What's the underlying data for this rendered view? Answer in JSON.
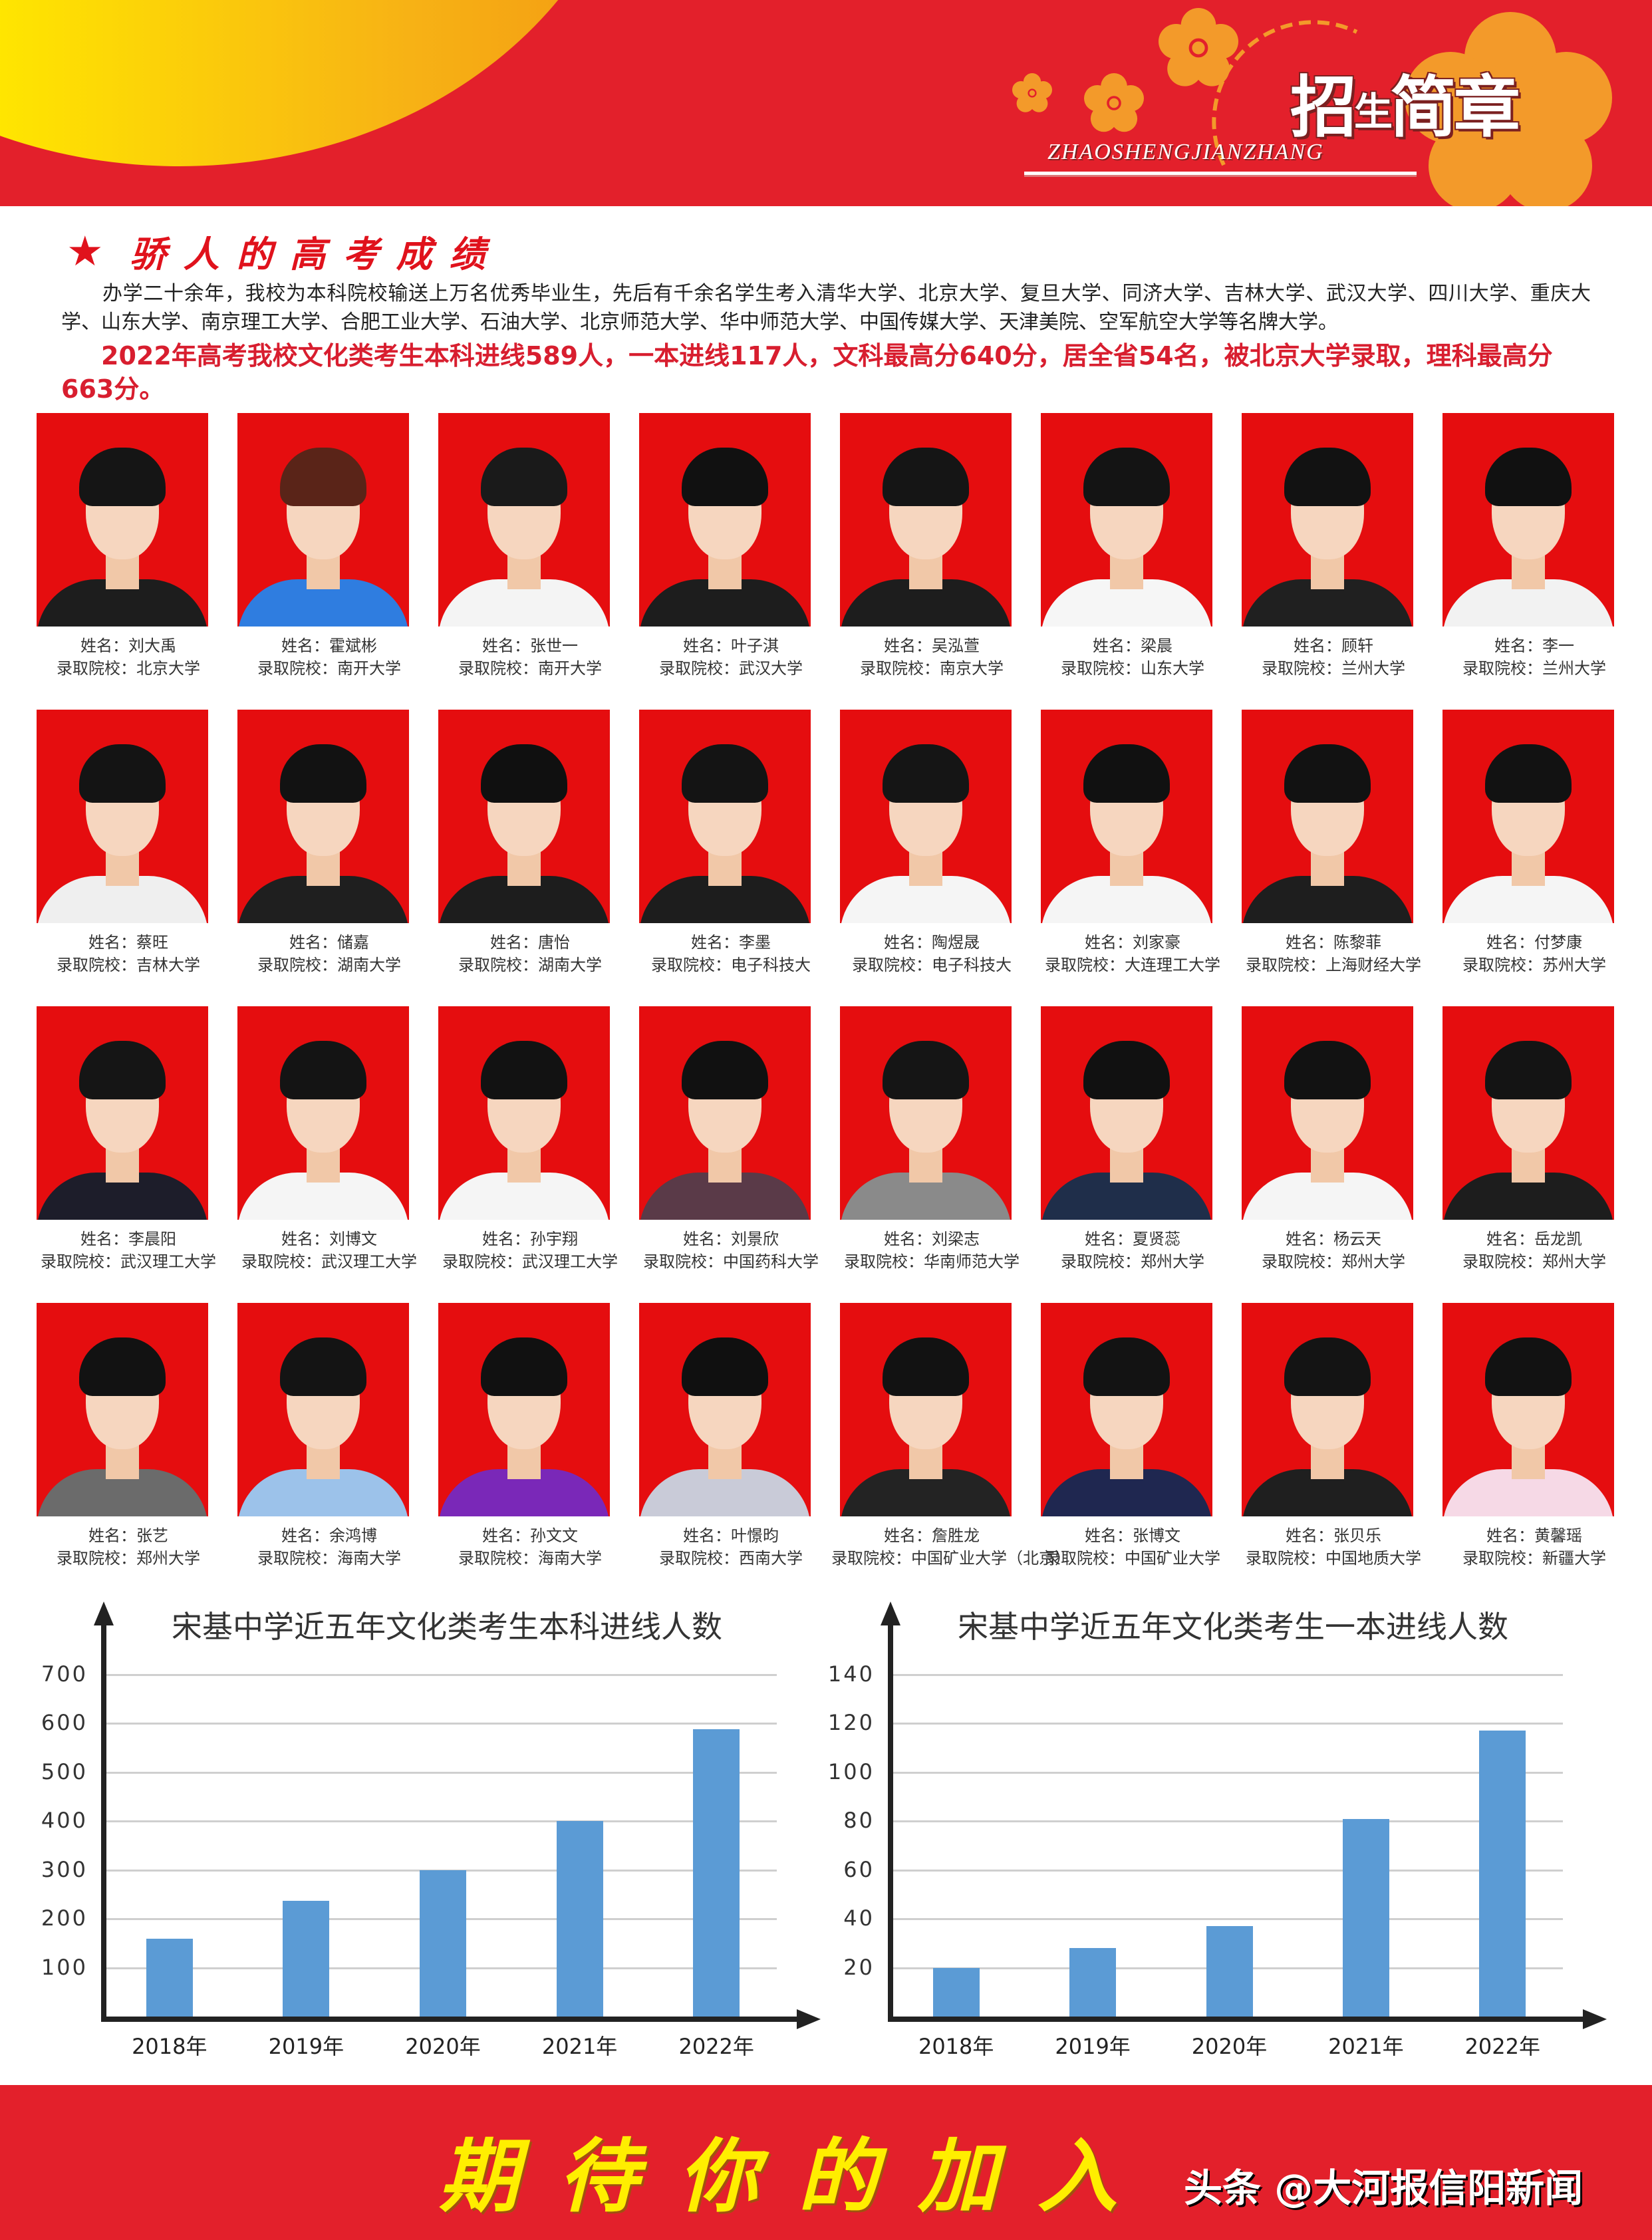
{
  "header": {
    "title_cn_parts": [
      "招",
      "生",
      "简章"
    ],
    "title_en": "ZHAOSHENGJIANZHANG",
    "colors": {
      "band": "#e3202b",
      "swoosh": "#ffe600",
      "flower": "#f39a2a"
    }
  },
  "section": {
    "heading": "骄人的高考成绩",
    "star": "★",
    "intro": "办学二十余年，我校为本科院校输送上万名优秀毕业生，先后有千余名学生考入清华大学、北京大学、复旦大学、同济大学、吉林大学、武汉大学、四川大学、重庆大学、山东大学、南京理工大学、合肥工业大学、石油大学、北京师范大学、华中师范大学、中国传媒大学、天津美院、空军航空大学等名牌大学。",
    "highlight": "2022年高考我校文化类考生本科进线589人，一本进线117人，文科最高分640分，居全省54名，被北京大学录取，理科最高分663分。"
  },
  "labels": {
    "name_prefix": "姓名：",
    "school_prefix": "录取院校："
  },
  "students": [
    {
      "name": "刘大禹",
      "school": "北京大学",
      "shirt": "#1d1d1d",
      "hair": "#151515"
    },
    {
      "name": "霍斌彬",
      "school": "南开大学",
      "shirt": "#2f7de0",
      "hair": "#5a2418"
    },
    {
      "name": "张世一",
      "school": "南开大学",
      "shirt": "#f4f4f4",
      "hair": "#1a1a1a"
    },
    {
      "name": "叶子淇",
      "school": "武汉大学",
      "shirt": "#1d1d1d",
      "hair": "#111111"
    },
    {
      "name": "吴泓萱",
      "school": "南京大学",
      "shirt": "#1d1d1d",
      "hair": "#151515"
    },
    {
      "name": "梁晨",
      "school": "山东大学",
      "shirt": "#f6f6f6",
      "hair": "#141414"
    },
    {
      "name": "顾轩",
      "school": "兰州大学",
      "shirt": "#202020",
      "hair": "#121212"
    },
    {
      "name": "李一",
      "school": "兰州大学",
      "shirt": "#f2f2f2",
      "hair": "#111111"
    },
    {
      "name": "蔡旺",
      "school": "吉林大学",
      "shirt": "#efefef",
      "hair": "#141414"
    },
    {
      "name": "储嘉",
      "school": "湖南大学",
      "shirt": "#1f1f1f",
      "hair": "#121212"
    },
    {
      "name": "唐怡",
      "school": "湖南大学",
      "shirt": "#1d1d1d",
      "hair": "#101010"
    },
    {
      "name": "李墨",
      "school": "电子科技大",
      "shirt": "#1d1d1d",
      "hair": "#141414"
    },
    {
      "name": "陶煜晟",
      "school": "电子科技大",
      "shirt": "#f5f5f5",
      "hair": "#151515"
    },
    {
      "name": "刘家豪",
      "school": "大连理工大学",
      "shirt": "#f5f5f5",
      "hair": "#111111"
    },
    {
      "name": "陈黎菲",
      "school": "上海财经大学",
      "shirt": "#1e1e1e",
      "hair": "#121212"
    },
    {
      "name": "付梦康",
      "school": "苏州大学",
      "shirt": "#f5f5f5",
      "hair": "#121212"
    },
    {
      "name": "李晨阳",
      "school": "武汉理工大学",
      "shirt": "#1d1d2a",
      "hair": "#151515"
    },
    {
      "name": "刘博文",
      "school": "武汉理工大学",
      "shirt": "#f5f5f5",
      "hair": "#141414"
    },
    {
      "name": "孙宇翔",
      "school": "武汉理工大学",
      "shirt": "#f5f5f5",
      "hair": "#121212"
    },
    {
      "name": "刘景欣",
      "school": "中国药科大学",
      "shirt": "#5a3a48",
      "hair": "#111111"
    },
    {
      "name": "刘梁志",
      "school": "华南师范大学",
      "shirt": "#8a8a8a",
      "hair": "#151515"
    },
    {
      "name": "夏贤蕊",
      "school": "郑州大学",
      "shirt": "#1f2e4a",
      "hair": "#111111"
    },
    {
      "name": "杨云天",
      "school": "郑州大学",
      "shirt": "#f5f5f5",
      "hair": "#121212"
    },
    {
      "name": "岳龙凯",
      "school": "郑州大学",
      "shirt": "#1d1d1d",
      "hair": "#141414"
    },
    {
      "name": "张艺",
      "school": "郑州大学",
      "shirt": "#6b6b6b",
      "hair": "#121212"
    },
    {
      "name": "余鸿博",
      "school": "海南大学",
      "shirt": "#9cc2ea",
      "hair": "#141414"
    },
    {
      "name": "孙文文",
      "school": "海南大学",
      "shirt": "#7a28b8",
      "hair": "#111111"
    },
    {
      "name": "叶憬昀",
      "school": "西南大学",
      "shirt": "#c9cbd8",
      "hair": "#101010"
    },
    {
      "name": "詹胜龙",
      "school": "中国矿业大学（北京）",
      "shirt": "#232323",
      "hair": "#121212"
    },
    {
      "name": "张博文",
      "school": "中国矿业大学",
      "shirt": "#1f2750",
      "hair": "#131313"
    },
    {
      "name": "张贝乐",
      "school": "中国地质大学",
      "shirt": "#1f1f1f",
      "hair": "#141414"
    },
    {
      "name": "黄馨瑶",
      "school": "新疆大学",
      "shirt": "#f6d9e6",
      "hair": "#121212"
    }
  ],
  "chart_data": [
    {
      "type": "bar",
      "title": "宋基中学近五年文化类考生本科进线人数",
      "categories": [
        "2018年",
        "2019年",
        "2020年",
        "2021年",
        "2022年"
      ],
      "values": [
        160,
        237,
        300,
        400,
        589
      ],
      "yticks": [
        "700",
        "600",
        "500",
        "400",
        "300",
        "200",
        "100"
      ],
      "ylim": [
        0,
        700
      ],
      "grid": true,
      "bar_color": "#5b9bd5",
      "xlabel": "",
      "ylabel": ""
    },
    {
      "type": "bar",
      "title": "宋基中学近五年文化类考生一本进线人数",
      "categories": [
        "2018年",
        "2019年",
        "2020年",
        "2021年",
        "2022年"
      ],
      "values": [
        20,
        28,
        37,
        81,
        117
      ],
      "yticks": [
        "140",
        "120",
        "100",
        "80",
        "60",
        "40",
        "20"
      ],
      "ylim": [
        0,
        140
      ],
      "grid": true,
      "bar_color": "#5b9bd5",
      "xlabel": "",
      "ylabel": ""
    }
  ],
  "footer": {
    "slogan": "期待你的加入",
    "watermark": "头条 @大河报信阳新闻"
  }
}
